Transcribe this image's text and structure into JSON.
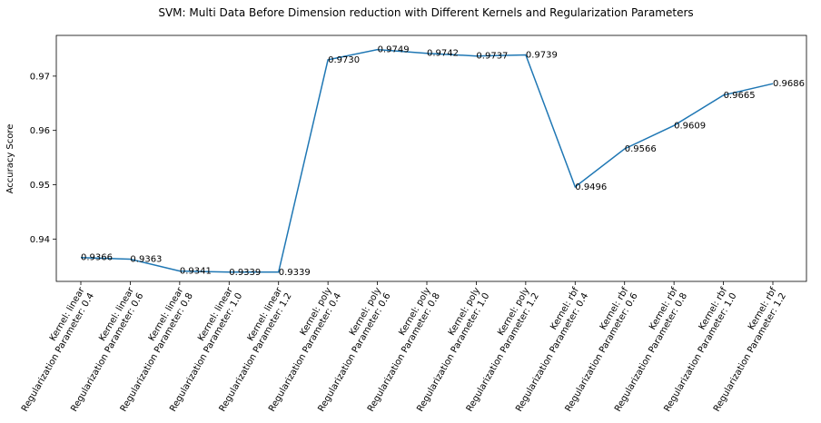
{
  "chart_data": {
    "type": "line",
    "title": "SVM: Multi Data Before Dimension reduction with Different Kernels and Regularization Parameters",
    "xlabel": "",
    "ylabel": "Accuracy Score",
    "ylim": [
      0.9322,
      0.9775
    ],
    "yticks": [
      "0.94",
      "0.95",
      "0.96",
      "0.97"
    ],
    "ytick_values": [
      0.94,
      0.95,
      0.96,
      0.97
    ],
    "grid": false,
    "line_color": "#1f77b4",
    "categories": [
      [
        "Kernel: linear",
        "Regularization Parameter: 0.4"
      ],
      [
        "Kernel: linear",
        "Regularization Parameter: 0.6"
      ],
      [
        "Kernel: linear",
        "Regularization Parameter: 0.8"
      ],
      [
        "Kernel: linear",
        "Regularization Parameter: 1.0"
      ],
      [
        "Kernel: linear",
        "Regularization Parameter: 1.2"
      ],
      [
        "Kernel: poly",
        "Regularization Parameter: 0.4"
      ],
      [
        "Kernel: poly",
        "Regularization Parameter: 0.6"
      ],
      [
        "Kernel: poly",
        "Regularization Parameter: 0.8"
      ],
      [
        "Kernel: poly",
        "Regularization Parameter: 1.0"
      ],
      [
        "Kernel: poly",
        "Regularization Parameter: 1.2"
      ],
      [
        "Kernel: rbf",
        "Regularization Parameter: 0.4"
      ],
      [
        "Kernel: rbf",
        "Regularization Parameter: 0.6"
      ],
      [
        "Kernel: rbf",
        "Regularization Parameter: 0.8"
      ],
      [
        "Kernel: rbf",
        "Regularization Parameter: 1.0"
      ],
      [
        "Kernel: rbf",
        "Regularization Parameter: 1.2"
      ]
    ],
    "values": [
      0.9366,
      0.9363,
      0.9341,
      0.9339,
      0.9339,
      0.973,
      0.9749,
      0.9742,
      0.9737,
      0.9739,
      0.9496,
      0.9566,
      0.9609,
      0.9665,
      0.9686
    ],
    "labels": [
      "0.9366",
      "0.9363",
      "0.9341",
      "0.9339",
      "0.9339",
      "0.9730",
      "0.9749",
      "0.9742",
      "0.9737",
      "0.9739",
      "0.9496",
      "0.9566",
      "0.9609",
      "0.9665",
      "0.9686"
    ]
  }
}
